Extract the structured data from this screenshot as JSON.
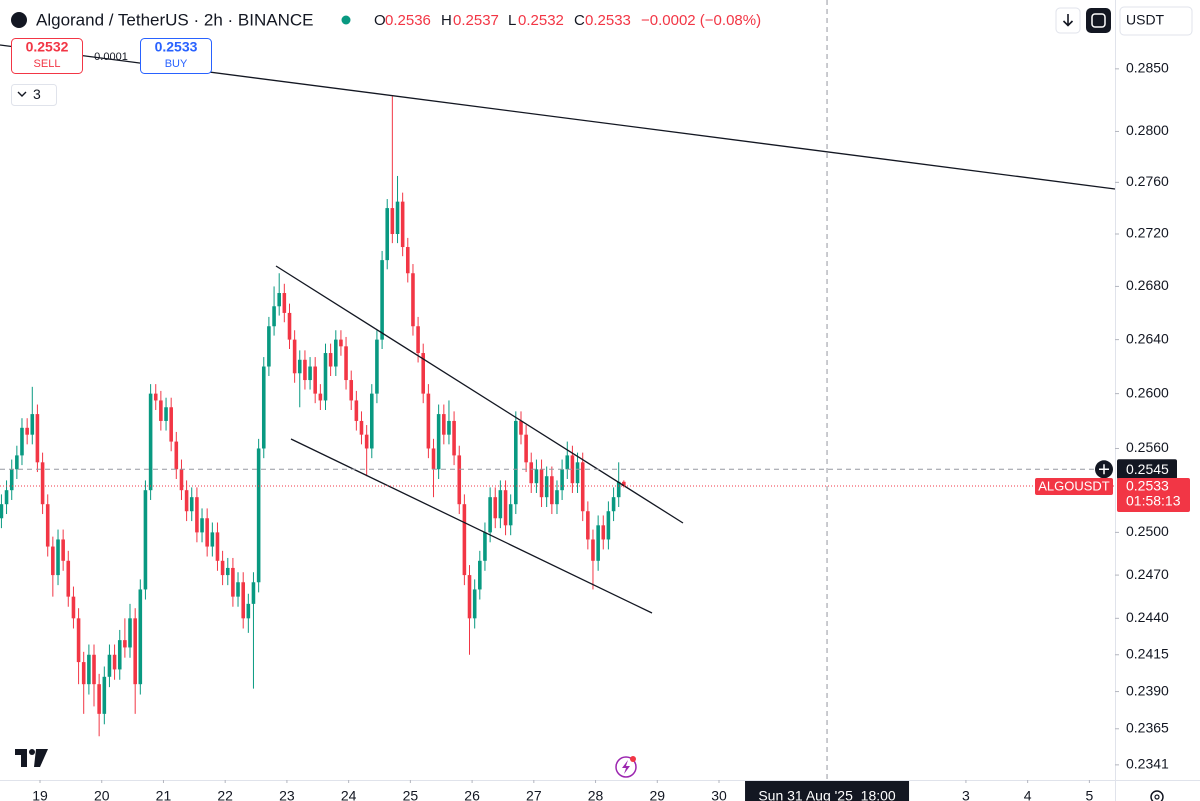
{
  "header": {
    "symbol": "Algorand / TetherUS · 2h · BINANCE",
    "ohlc": [
      {
        "label": "O",
        "value": "0.2536"
      },
      {
        "label": "H",
        "value": "0.2537"
      },
      {
        "label": "L",
        "value": "0.2532"
      },
      {
        "label": "C",
        "value": "0.2533"
      }
    ],
    "change": "−0.0002 (−0.08%)",
    "currency": "USDT"
  },
  "trade": {
    "sell_price": "0.2532",
    "sell_label": "SELL",
    "spread": "0.0001",
    "buy_price": "0.2533",
    "buy_label": "BUY"
  },
  "indicators_count": "3",
  "chart_data": {
    "type": "candlestick",
    "log_scale": true,
    "up_color": "#089981",
    "down_color": "#f23645",
    "x": [
      18.375,
      18.458,
      18.542,
      18.625,
      18.708,
      18.792,
      18.875,
      18.958,
      19.042,
      19.125,
      19.208,
      19.292,
      19.375,
      19.458,
      19.542,
      19.625,
      19.708,
      19.792,
      19.875,
      19.958,
      20.042,
      20.125,
      20.208,
      20.292,
      20.375,
      20.458,
      20.542,
      20.625,
      20.708,
      20.792,
      20.875,
      20.958,
      21.042,
      21.125,
      21.208,
      21.292,
      21.375,
      21.458,
      21.542,
      21.625,
      21.708,
      21.792,
      21.875,
      21.958,
      22.042,
      22.125,
      22.208,
      22.292,
      22.375,
      22.458,
      22.542,
      22.625,
      22.708,
      22.792,
      22.875,
      22.958,
      23.042,
      23.125,
      23.208,
      23.292,
      23.375,
      23.458,
      23.542,
      23.625,
      23.708,
      23.792,
      23.875,
      23.958,
      24.042,
      24.125,
      24.208,
      24.292,
      24.375,
      24.458,
      24.542,
      24.625,
      24.708,
      24.792,
      24.875,
      24.958,
      25.042,
      25.125,
      25.208,
      25.292,
      25.375,
      25.458,
      25.542,
      25.625,
      25.708,
      25.792,
      25.875,
      25.958,
      26.042,
      26.125,
      26.208,
      26.292,
      26.375,
      26.458,
      26.542,
      26.625,
      26.708,
      26.792,
      26.875,
      26.958,
      27.042,
      27.125,
      27.208,
      27.292,
      27.375,
      27.458,
      27.542,
      27.625,
      27.708,
      27.792,
      27.875,
      27.958,
      28.042,
      28.125,
      28.208,
      28.292,
      28.375,
      28.458
    ],
    "open": [
      0.251,
      0.252,
      0.253,
      0.2545,
      0.2555,
      0.2575,
      0.257,
      0.2585,
      0.255,
      0.252,
      0.249,
      0.247,
      0.2495,
      0.248,
      0.2455,
      0.244,
      0.241,
      0.2395,
      0.2415,
      0.2395,
      0.2375,
      0.24,
      0.2415,
      0.2405,
      0.2425,
      0.242,
      0.244,
      0.2395,
      0.246,
      0.253,
      0.26,
      0.2595,
      0.258,
      0.259,
      0.2565,
      0.2545,
      0.253,
      0.2515,
      0.2525,
      0.25,
      0.251,
      0.249,
      0.25,
      0.248,
      0.247,
      0.2475,
      0.2455,
      0.2465,
      0.244,
      0.245,
      0.2465,
      0.256,
      0.262,
      0.265,
      0.2665,
      0.2675,
      0.266,
      0.264,
      0.2615,
      0.2625,
      0.261,
      0.262,
      0.26,
      0.2595,
      0.263,
      0.262,
      0.264,
      0.2635,
      0.261,
      0.2595,
      0.258,
      0.257,
      0.256,
      0.26,
      0.264,
      0.27,
      0.274,
      0.272,
      0.2745,
      0.271,
      0.269,
      0.265,
      0.263,
      0.26,
      0.256,
      0.2545,
      0.2585,
      0.257,
      0.258,
      0.2555,
      0.252,
      0.247,
      0.244,
      0.246,
      0.248,
      0.25,
      0.2525,
      0.251,
      0.253,
      0.2505,
      0.252,
      0.258,
      0.257,
      0.255,
      0.2535,
      0.2545,
      0.2525,
      0.254,
      0.252,
      0.253,
      0.2545,
      0.2555,
      0.2535,
      0.255,
      0.2515,
      0.2495,
      0.248,
      0.2505,
      0.2495,
      0.2515,
      0.2525,
      0.2536
    ],
    "high": [
      0.2527,
      0.2537,
      0.2552,
      0.2562,
      0.2582,
      0.2582,
      0.2605,
      0.2592,
      0.2557,
      0.2527,
      0.2497,
      0.2502,
      0.2502,
      0.2487,
      0.2462,
      0.2447,
      0.2417,
      0.2422,
      0.2422,
      0.2402,
      0.2407,
      0.2422,
      0.2422,
      0.2432,
      0.244,
      0.245,
      0.2447,
      0.2467,
      0.2537,
      0.2607,
      0.2607,
      0.2602,
      0.2597,
      0.2597,
      0.2572,
      0.2552,
      0.2537,
      0.2532,
      0.2532,
      0.2517,
      0.2517,
      0.2507,
      0.2507,
      0.2487,
      0.2482,
      0.2482,
      0.2472,
      0.2472,
      0.2457,
      0.2472,
      0.2567,
      0.2627,
      0.2657,
      0.268,
      0.269,
      0.2682,
      0.2667,
      0.2647,
      0.2632,
      0.2632,
      0.2627,
      0.2627,
      0.2607,
      0.2637,
      0.2637,
      0.2647,
      0.2647,
      0.2642,
      0.2617,
      0.2602,
      0.2587,
      0.2577,
      0.2607,
      0.2647,
      0.2707,
      0.2747,
      0.2828,
      0.2765,
      0.2752,
      0.2717,
      0.2697,
      0.2657,
      0.2637,
      0.2607,
      0.2567,
      0.2592,
      0.2592,
      0.2595,
      0.2587,
      0.2562,
      0.2527,
      0.2477,
      0.2467,
      0.2487,
      0.2507,
      0.2532,
      0.2532,
      0.2537,
      0.2537,
      0.2527,
      0.2587,
      0.2587,
      0.2577,
      0.2557,
      0.2552,
      0.2552,
      0.2547,
      0.2547,
      0.2537,
      0.2552,
      0.2565,
      0.2562,
      0.2557,
      0.2557,
      0.2522,
      0.2502,
      0.2512,
      0.2512,
      0.2522,
      0.2532,
      0.255,
      0.2537
    ],
    "low": [
      0.2503,
      0.2513,
      0.2523,
      0.2538,
      0.2548,
      0.2563,
      0.2563,
      0.2543,
      0.2513,
      0.2483,
      0.2455,
      0.2463,
      0.2473,
      0.2448,
      0.2433,
      0.2395,
      0.2375,
      0.2388,
      0.238,
      0.236,
      0.2368,
      0.2393,
      0.2398,
      0.2398,
      0.2413,
      0.2413,
      0.2375,
      0.2388,
      0.2453,
      0.2523,
      0.2588,
      0.2573,
      0.2573,
      0.2558,
      0.2538,
      0.2523,
      0.2508,
      0.2508,
      0.2493,
      0.2493,
      0.2483,
      0.2483,
      0.2473,
      0.2463,
      0.2463,
      0.2448,
      0.2448,
      0.2433,
      0.243,
      0.2392,
      0.2458,
      0.2553,
      0.2613,
      0.2643,
      0.2658,
      0.2653,
      0.2633,
      0.2608,
      0.259,
      0.2603,
      0.2603,
      0.2593,
      0.2588,
      0.2588,
      0.2613,
      0.2613,
      0.2628,
      0.2603,
      0.2588,
      0.2573,
      0.2563,
      0.254,
      0.2553,
      0.2593,
      0.2633,
      0.2693,
      0.2713,
      0.2713,
      0.2703,
      0.2683,
      0.2643,
      0.2623,
      0.2593,
      0.2553,
      0.2525,
      0.2538,
      0.2563,
      0.2563,
      0.2548,
      0.2513,
      0.2463,
      0.2415,
      0.2433,
      0.2453,
      0.2473,
      0.2493,
      0.2503,
      0.2503,
      0.2498,
      0.2498,
      0.2513,
      0.2563,
      0.2543,
      0.2528,
      0.2528,
      0.2518,
      0.2518,
      0.2513,
      0.2513,
      0.2523,
      0.2538,
      0.2528,
      0.2528,
      0.2508,
      0.2488,
      0.246,
      0.2473,
      0.2488,
      0.2488,
      0.2508,
      0.2518,
      0.2532
    ],
    "close": [
      0.252,
      0.253,
      0.2545,
      0.2555,
      0.2575,
      0.257,
      0.2585,
      0.255,
      0.252,
      0.249,
      0.247,
      0.2495,
      0.248,
      0.2455,
      0.244,
      0.241,
      0.2395,
      0.2415,
      0.2395,
      0.2375,
      0.24,
      0.2415,
      0.2405,
      0.2425,
      0.242,
      0.244,
      0.2395,
      0.246,
      0.253,
      0.26,
      0.2595,
      0.258,
      0.259,
      0.2565,
      0.2545,
      0.253,
      0.2515,
      0.2525,
      0.25,
      0.251,
      0.249,
      0.25,
      0.248,
      0.247,
      0.2475,
      0.2455,
      0.2465,
      0.244,
      0.245,
      0.2465,
      0.256,
      0.262,
      0.265,
      0.2665,
      0.2675,
      0.266,
      0.264,
      0.2615,
      0.2625,
      0.261,
      0.262,
      0.26,
      0.2595,
      0.263,
      0.262,
      0.264,
      0.2635,
      0.261,
      0.2595,
      0.258,
      0.257,
      0.256,
      0.26,
      0.264,
      0.27,
      0.274,
      0.272,
      0.2745,
      0.271,
      0.269,
      0.265,
      0.263,
      0.26,
      0.256,
      0.2545,
      0.2585,
      0.257,
      0.258,
      0.2555,
      0.252,
      0.247,
      0.244,
      0.246,
      0.248,
      0.25,
      0.2525,
      0.251,
      0.253,
      0.2505,
      0.252,
      0.258,
      0.257,
      0.255,
      0.2535,
      0.2545,
      0.2525,
      0.254,
      0.252,
      0.253,
      0.2545,
      0.2555,
      0.2535,
      0.255,
      0.2515,
      0.2495,
      0.248,
      0.2505,
      0.2495,
      0.2515,
      0.2525,
      0.2536,
      0.2533
    ],
    "xlim": [
      18.352,
      36.415
    ],
    "xticks": [
      19,
      20,
      21,
      22,
      23,
      24,
      25,
      26,
      27,
      28,
      29,
      30,
      {
        "value": 34,
        "label": "3"
      },
      {
        "value": 35,
        "label": "4"
      },
      {
        "value": 36,
        "label": "5"
      }
    ],
    "ylim": [
      0.2331,
      0.2906
    ],
    "yticks": [
      {
        "value": 0.285,
        "label": "0.2850"
      },
      {
        "value": 0.28,
        "label": "0.2800"
      },
      {
        "value": 0.276,
        "label": "0.2760"
      },
      {
        "value": 0.272,
        "label": "0.2720"
      },
      {
        "value": 0.268,
        "label": "0.2680"
      },
      {
        "value": 0.264,
        "label": "0.2640"
      },
      {
        "value": 0.26,
        "label": "0.2600"
      },
      {
        "value": 0.256,
        "label": "0.2560"
      },
      {
        "value": 0.25,
        "label": "0.2500"
      },
      {
        "value": 0.247,
        "label": "0.2470"
      },
      {
        "value": 0.244,
        "label": "0.2440"
      },
      0.2415,
      {
        "value": 0.239,
        "label": "0.2390"
      },
      0.2365,
      0.2341
    ],
    "last_price": {
      "value": 0.2533,
      "symbol": "ALGOUSDT",
      "countdown": "01:58:13"
    },
    "crosshair": {
      "x": {
        "value": 31.75,
        "label": "Sun 31 Aug '25  18:00"
      },
      "y": 0.2545
    }
  }
}
